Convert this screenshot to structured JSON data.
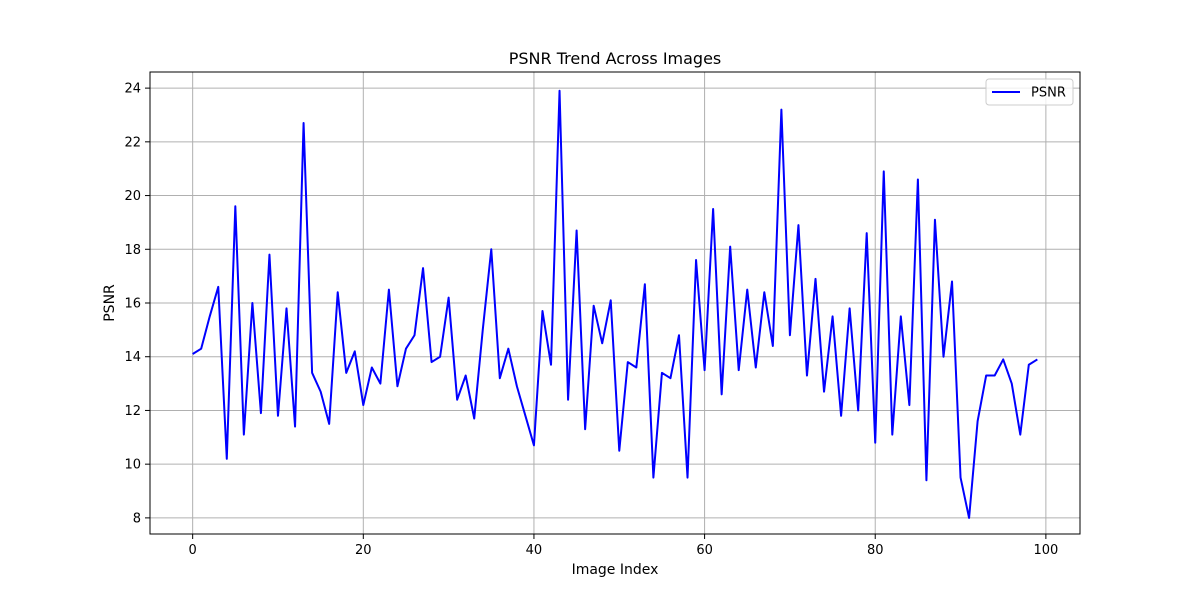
{
  "chart_data": {
    "type": "line",
    "title": "PSNR Trend Across Images",
    "xlabel": "Image Index",
    "ylabel": "PSNR",
    "xlim": [
      -5,
      104
    ],
    "ylim": [
      7.4,
      24.6
    ],
    "xticks": [
      0,
      20,
      40,
      60,
      80,
      100
    ],
    "yticks": [
      8,
      10,
      12,
      14,
      16,
      18,
      20,
      22,
      24
    ],
    "grid": true,
    "legend_position": "top-right",
    "series": [
      {
        "name": "PSNR",
        "color": "#0000ff",
        "x": [
          0,
          1,
          2,
          3,
          4,
          5,
          6,
          7,
          8,
          9,
          10,
          11,
          12,
          13,
          14,
          15,
          16,
          17,
          18,
          19,
          20,
          21,
          22,
          23,
          24,
          25,
          26,
          27,
          28,
          29,
          30,
          31,
          32,
          33,
          34,
          35,
          36,
          37,
          38,
          39,
          40,
          41,
          42,
          43,
          44,
          45,
          46,
          47,
          48,
          49,
          50,
          51,
          52,
          53,
          54,
          55,
          56,
          57,
          58,
          59,
          60,
          61,
          62,
          63,
          64,
          65,
          66,
          67,
          68,
          69,
          70,
          71,
          72,
          73,
          74,
          75,
          76,
          77,
          78,
          79,
          80,
          81,
          82,
          83,
          84,
          85,
          86,
          87,
          88,
          89,
          90,
          91,
          92,
          93,
          94,
          95,
          96,
          97,
          98,
          99
        ],
        "y": [
          14.1,
          14.3,
          15.5,
          16.6,
          10.2,
          19.6,
          11.1,
          16.0,
          11.9,
          17.8,
          11.8,
          15.8,
          11.4,
          22.7,
          13.4,
          12.7,
          11.5,
          16.4,
          13.4,
          14.2,
          12.2,
          13.6,
          13.0,
          16.5,
          12.9,
          14.3,
          14.8,
          17.3,
          13.8,
          14.0,
          16.2,
          12.4,
          13.3,
          11.7,
          15.0,
          18.0,
          13.2,
          14.3,
          12.9,
          11.8,
          10.7,
          15.7,
          13.7,
          23.9,
          12.4,
          18.7,
          11.3,
          15.9,
          14.5,
          16.1,
          10.5,
          13.8,
          13.6,
          16.7,
          9.5,
          13.4,
          13.2,
          14.8,
          9.5,
          17.6,
          13.5,
          19.5,
          12.6,
          18.1,
          13.5,
          16.5,
          13.6,
          16.4,
          14.4,
          23.2,
          14.8,
          18.9,
          13.3,
          16.9,
          12.7,
          15.5,
          11.8,
          15.8,
          12.0,
          18.6,
          10.8,
          20.9,
          11.1,
          15.5,
          12.2,
          20.6,
          9.4,
          19.1,
          14.0,
          16.8,
          9.5,
          8.0,
          11.6,
          13.3,
          13.3,
          13.9,
          13.0,
          11.1,
          13.7,
          13.9
        ]
      }
    ]
  }
}
